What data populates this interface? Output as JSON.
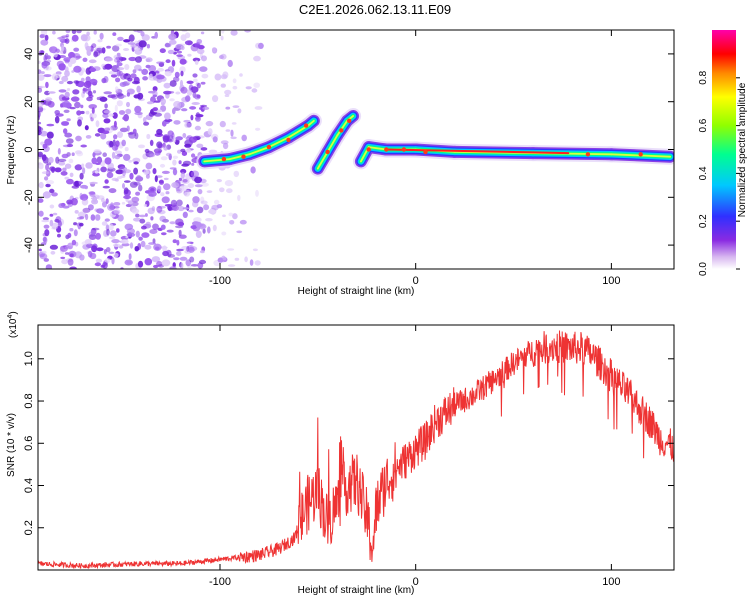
{
  "title": "C2E1.2026.062.13.11.E09",
  "chart_data": [
    {
      "type": "heatmap",
      "xlabel": "Height of straight line (km)",
      "ylabel": "Frequency (Hz)",
      "xlim": [
        -193,
        132
      ],
      "ylim": [
        -50,
        50
      ],
      "xticks": [
        -100,
        0,
        100
      ],
      "yticks": [
        -40,
        -20,
        0,
        20,
        40
      ],
      "colorbar": {
        "label": "Normalized spectral amplitude",
        "range": [
          0,
          1
        ],
        "ticks": [
          "0.0",
          "0.2",
          "0.4",
          "0.6",
          "0.8"
        ]
      },
      "noise_region_x": [
        -193,
        -78
      ],
      "echo_trace": [
        {
          "x": -108,
          "y": -5
        },
        {
          "x": -95,
          "y": -4
        },
        {
          "x": -85,
          "y": -2
        },
        {
          "x": -75,
          "y": 1
        },
        {
          "x": -65,
          "y": 5
        },
        {
          "x": -55,
          "y": 10
        },
        {
          "x": -52,
          "y": 12
        },
        {
          "x": -50,
          "y": -8
        },
        {
          "x": -45,
          "y": -1
        },
        {
          "x": -40,
          "y": 6
        },
        {
          "x": -35,
          "y": 12
        },
        {
          "x": -32,
          "y": 14
        },
        {
          "x": -28,
          "y": -5
        },
        {
          "x": -24,
          "y": 1
        },
        {
          "x": -15,
          "y": 0
        },
        {
          "x": 0,
          "y": 0
        },
        {
          "x": 20,
          "y": -1
        },
        {
          "x": 60,
          "y": -1.5
        },
        {
          "x": 100,
          "y": -2
        },
        {
          "x": 130,
          "y": -3
        }
      ]
    },
    {
      "type": "line",
      "xlabel": "Height of straight line (km)",
      "ylabel": "SNR (10 * v/v)",
      "y_multiplier": "(x10",
      "y_multiplier_exp": "4",
      "y_multiplier_close": ")",
      "xlim": [
        -193,
        132
      ],
      "ylim": [
        0,
        1.16
      ],
      "xticks": [
        -100,
        0,
        100
      ],
      "yticks": [
        "0.2",
        "0.4",
        "0.6",
        "0.8",
        "1.0"
      ],
      "series": [
        {
          "name": "SNR",
          "color": "#ee3333",
          "x": [
            -193,
            -170,
            -140,
            -120,
            -110,
            -100,
            -90,
            -80,
            -70,
            -62,
            -56,
            -50,
            -45,
            -40,
            -35,
            -30,
            -25,
            -22,
            -20,
            -15,
            -10,
            -5,
            0,
            5,
            10,
            20,
            30,
            40,
            50,
            60,
            70,
            80,
            85,
            90,
            100,
            110,
            120,
            125,
            132
          ],
          "values": [
            0.03,
            0.02,
            0.03,
            0.03,
            0.04,
            0.05,
            0.06,
            0.07,
            0.1,
            0.15,
            0.3,
            0.38,
            0.22,
            0.32,
            0.4,
            0.42,
            0.25,
            0.1,
            0.3,
            0.42,
            0.48,
            0.52,
            0.57,
            0.61,
            0.7,
            0.78,
            0.83,
            0.9,
            0.98,
            1.04,
            1.06,
            1.05,
            1.05,
            1.02,
            0.92,
            0.82,
            0.7,
            0.62,
            0.58
          ]
        }
      ]
    }
  ]
}
